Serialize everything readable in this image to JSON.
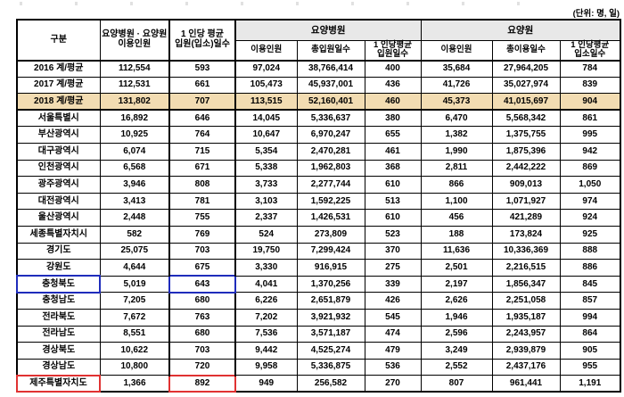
{
  "unit_label": "(단위: 명, 일)",
  "colors": {
    "highlight_row": "#f2dcb2",
    "group_header_bg": "#e8e8e8",
    "blue_box": "#1f2cbb",
    "red_box": "#e03232"
  },
  "table": {
    "columns": {
      "gubun": "구분",
      "combined_users": "요양병원 · 요양원\n이용인원",
      "avg_days": "1 인당 평균\n입원(입소)일수",
      "group_hospital": "요양병원",
      "group_nursing_home": "요양원",
      "sub_headers": [
        "이용인원",
        "총입원일수",
        "1 인당평균\n입원일수",
        "이용인원",
        "총이용일수",
        "1 인당평균\n입소일수"
      ]
    },
    "rows": [
      {
        "label": "2016 계/평균",
        "values": [
          "112,554",
          "593",
          "97,024",
          "38,766,414",
          "400",
          "35,684",
          "27,964,205",
          "784"
        ]
      },
      {
        "label": "2017 계/평균",
        "values": [
          "112,531",
          "661",
          "105,473",
          "45,937,001",
          "436",
          "41,726",
          "35,027,974",
          "839"
        ]
      },
      {
        "label": "2018 계/평균",
        "highlight": true,
        "values": [
          "131,802",
          "707",
          "113,515",
          "52,160,401",
          "460",
          "45,373",
          "41,015,697",
          "904"
        ]
      },
      {
        "label": "서울특별시",
        "values": [
          "16,892",
          "646",
          "14,045",
          "5,336,637",
          "380",
          "6,470",
          "5,568,342",
          "861"
        ]
      },
      {
        "label": "부산광역시",
        "values": [
          "10,925",
          "764",
          "10,647",
          "6,970,247",
          "655",
          "1,382",
          "1,375,755",
          "995"
        ]
      },
      {
        "label": "대구광역시",
        "values": [
          "6,074",
          "715",
          "5,354",
          "2,470,281",
          "461",
          "1,990",
          "1,875,396",
          "942"
        ]
      },
      {
        "label": "인천광역시",
        "values": [
          "6,568",
          "671",
          "5,338",
          "1,962,803",
          "368",
          "2,811",
          "2,442,222",
          "869"
        ]
      },
      {
        "label": "광주광역시",
        "values": [
          "3,946",
          "808",
          "3,733",
          "2,277,744",
          "610",
          "866",
          "909,013",
          "1,050"
        ]
      },
      {
        "label": "대전광역시",
        "values": [
          "3,413",
          "781",
          "3,103",
          "1,592,225",
          "513",
          "1,100",
          "1,071,927",
          "974"
        ]
      },
      {
        "label": "울산광역시",
        "values": [
          "2,448",
          "755",
          "2,337",
          "1,426,531",
          "610",
          "456",
          "421,289",
          "924"
        ]
      },
      {
        "label": "세종특별자치시",
        "values": [
          "582",
          "769",
          "524",
          "273,809",
          "523",
          "188",
          "173,824",
          "925"
        ]
      },
      {
        "label": "경기도",
        "values": [
          "25,075",
          "703",
          "19,750",
          "7,299,424",
          "370",
          "11,636",
          "10,336,369",
          "888"
        ]
      },
      {
        "label": "강원도",
        "values": [
          "4,644",
          "675",
          "3,330",
          "916,915",
          "275",
          "2,501",
          "2,216,515",
          "886"
        ]
      },
      {
        "label": "충청북도",
        "box": "blue",
        "values": [
          "5,019",
          "643",
          "4,041",
          "1,370,256",
          "339",
          "2,197",
          "1,856,347",
          "845"
        ]
      },
      {
        "label": "충청남도",
        "values": [
          "7,205",
          "680",
          "6,226",
          "2,651,879",
          "426",
          "2,626",
          "2,251,058",
          "857"
        ]
      },
      {
        "label": "전라북도",
        "values": [
          "7,672",
          "763",
          "7,202",
          "3,921,932",
          "545",
          "1,946",
          "1,935,187",
          "994"
        ]
      },
      {
        "label": "전라남도",
        "values": [
          "8,551",
          "680",
          "7,536",
          "3,571,187",
          "474",
          "2,596",
          "2,243,957",
          "864"
        ]
      },
      {
        "label": "경상북도",
        "values": [
          "10,622",
          "703",
          "9,442",
          "4,525,274",
          "479",
          "3,249",
          "2,939,879",
          "905"
        ]
      },
      {
        "label": "경상남도",
        "values": [
          "10,800",
          "720",
          "9,958",
          "5,336,875",
          "536",
          "2,552",
          "2,437,176",
          "955"
        ]
      },
      {
        "label": "제주특별자치도",
        "box": "red",
        "values": [
          "1,366",
          "892",
          "949",
          "256,582",
          "270",
          "807",
          "961,441",
          "1,191"
        ]
      }
    ]
  }
}
